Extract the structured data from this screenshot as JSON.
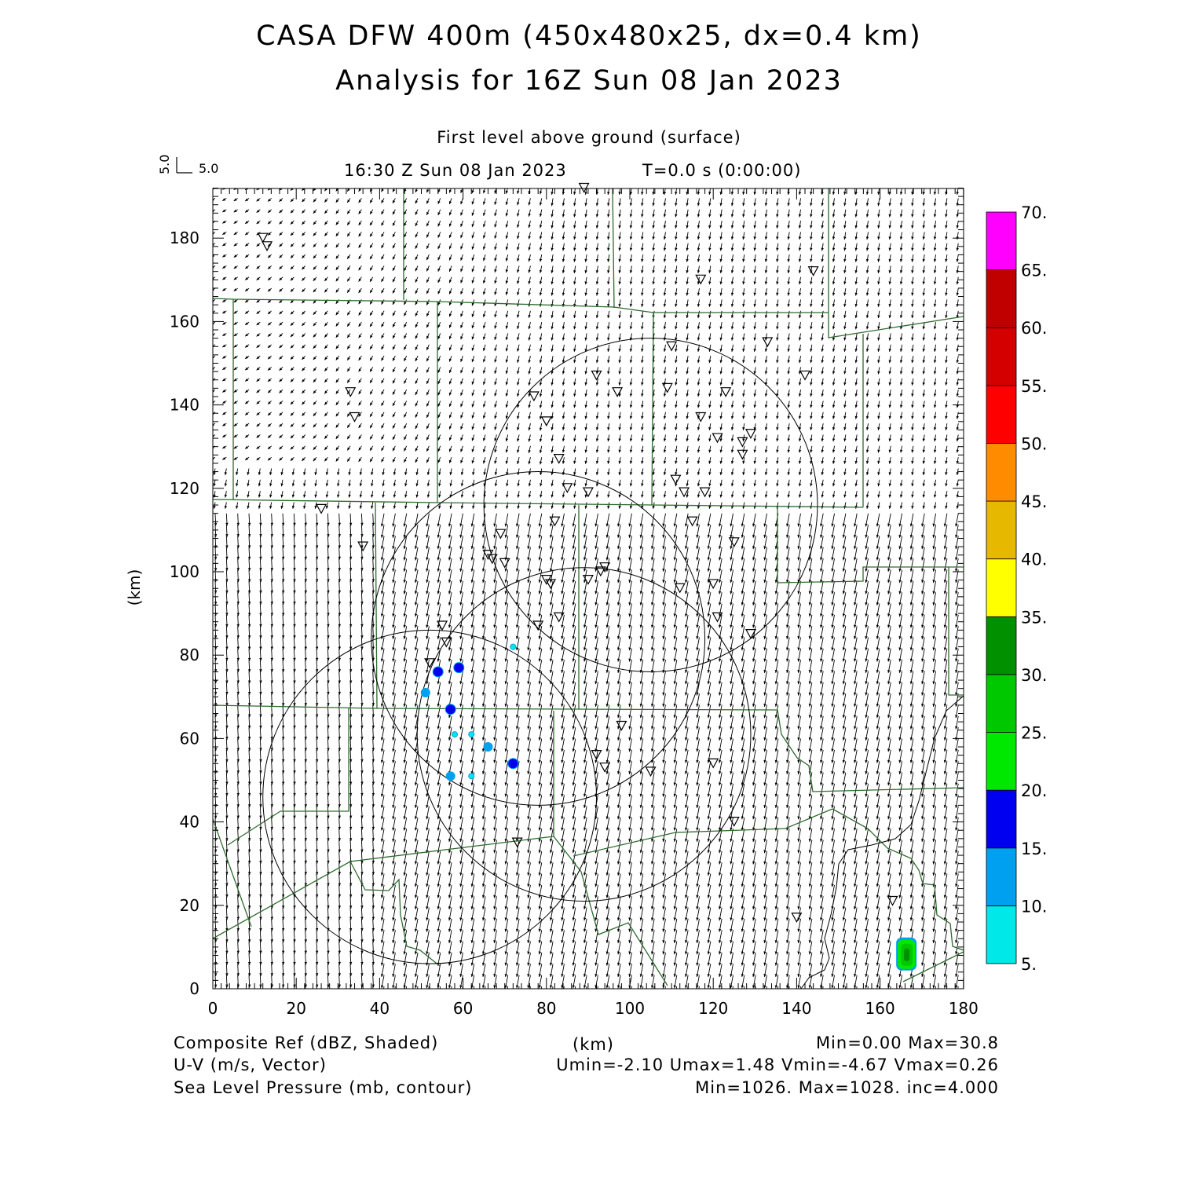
{
  "header": {
    "title": "CASA DFW 400m (450x480x25, dx=0.4 km)",
    "subtitle": "Analysis for 16Z Sun 08 Jan 2023",
    "level": "First level above ground (surface)",
    "valid_time": "16:30 Z Sun 08 Jan 2023",
    "elapsed": "T=0.0 s (0:00:00)"
  },
  "vector_key": {
    "u_label": "5.0",
    "v_label": "5.0"
  },
  "axes": {
    "x_label": "(km)",
    "y_label": "(km)",
    "x_ticks": [
      "0",
      "20",
      "40",
      "60",
      "80",
      "100",
      "120",
      "140",
      "160",
      "180"
    ],
    "y_ticks": [
      "0",
      "20",
      "40",
      "60",
      "80",
      "100",
      "120",
      "140",
      "160",
      "180"
    ],
    "x_range": [
      0,
      180
    ],
    "y_range": [
      0,
      192
    ]
  },
  "colorbar": {
    "labels": [
      "5.",
      "10.",
      "15.",
      "20.",
      "25.",
      "30.",
      "35.",
      "40.",
      "45.",
      "50.",
      "55.",
      "60.",
      "65.",
      "70."
    ],
    "colors": [
      "#00e8e8",
      "#00a0f0",
      "#0000f0",
      "#00e800",
      "#00c800",
      "#009000",
      "#ffff00",
      "#e6b800",
      "#ff8c00",
      "#ff0000",
      "#d40000",
      "#c00000",
      "#ff00ff"
    ]
  },
  "footer": {
    "field1": "Composite Ref (dBZ, Shaded)",
    "field1_stats": "Min=0.00 Max=30.8",
    "field2": "U-V (m/s, Vector)",
    "field2_stats": "Umin=-2.10 Umax=1.48 Vmin=-4.67 Vmax=0.26",
    "field3": "Sea Level Pressure (mb, contour)",
    "field3_stats": "Min=1026. Max=1028. inc=4.000",
    "x_units": "(km)"
  },
  "map_style": {
    "county_line_color": "#2e6b2e",
    "vector_color": "#000000",
    "radar_ring_color": "#000000",
    "station_marker": "inverted-triangle"
  },
  "radar_rings": [
    {
      "center_km": [
        105,
        116
      ],
      "radius_km": 40
    },
    {
      "center_km": [
        78,
        84
      ],
      "radius_km": 40
    },
    {
      "center_km": [
        89,
        61
      ],
      "radius_km": 40
    },
    {
      "center_km": [
        52,
        46
      ],
      "radius_km": 40
    }
  ],
  "stations_km": [
    [
      12,
      180
    ],
    [
      13,
      178
    ],
    [
      89,
      192
    ],
    [
      117,
      170
    ],
    [
      144,
      172
    ],
    [
      110,
      154
    ],
    [
      133,
      155
    ],
    [
      142,
      147
    ],
    [
      92,
      147
    ],
    [
      77,
      142
    ],
    [
      97,
      143
    ],
    [
      109,
      144
    ],
    [
      123,
      143
    ],
    [
      33,
      143
    ],
    [
      34,
      137
    ],
    [
      80,
      136
    ],
    [
      117,
      137
    ],
    [
      121,
      132
    ],
    [
      127,
      131
    ],
    [
      129,
      133
    ],
    [
      127,
      128
    ],
    [
      83,
      127
    ],
    [
      85,
      120
    ],
    [
      90,
      119
    ],
    [
      111,
      122
    ],
    [
      113,
      119
    ],
    [
      118,
      119
    ],
    [
      26,
      115
    ],
    [
      82,
      112
    ],
    [
      69,
      109
    ],
    [
      115,
      112
    ],
    [
      125,
      107
    ],
    [
      36,
      106
    ],
    [
      66,
      104
    ],
    [
      67,
      103
    ],
    [
      70,
      102
    ],
    [
      94,
      101
    ],
    [
      93,
      100
    ],
    [
      90,
      98
    ],
    [
      80,
      98
    ],
    [
      81,
      97
    ],
    [
      112,
      96
    ],
    [
      120,
      97
    ],
    [
      83,
      89
    ],
    [
      78,
      87
    ],
    [
      121,
      89
    ],
    [
      129,
      85
    ],
    [
      55,
      87
    ],
    [
      56,
      83
    ],
    [
      52,
      78
    ],
    [
      98,
      63
    ],
    [
      92,
      56
    ],
    [
      94,
      53
    ],
    [
      105,
      52
    ],
    [
      120,
      54
    ],
    [
      125,
      40
    ],
    [
      73,
      35
    ],
    [
      163,
      21
    ],
    [
      140,
      17
    ]
  ],
  "reflectivity_cells_km": [
    {
      "x": 54,
      "y": 76,
      "dbz": 17
    },
    {
      "x": 59,
      "y": 77,
      "dbz": 15
    },
    {
      "x": 72,
      "y": 82,
      "dbz": 7
    },
    {
      "x": 51,
      "y": 71,
      "dbz": 10
    },
    {
      "x": 57,
      "y": 67,
      "dbz": 16
    },
    {
      "x": 58,
      "y": 61,
      "dbz": 6
    },
    {
      "x": 62,
      "y": 61,
      "dbz": 7
    },
    {
      "x": 66,
      "y": 58,
      "dbz": 11
    },
    {
      "x": 72,
      "y": 54,
      "dbz": 17
    },
    {
      "x": 57,
      "y": 51,
      "dbz": 13
    },
    {
      "x": 62,
      "y": 51,
      "dbz": 9
    },
    {
      "x": 165,
      "y": 4,
      "dbz": 30.8
    }
  ]
}
